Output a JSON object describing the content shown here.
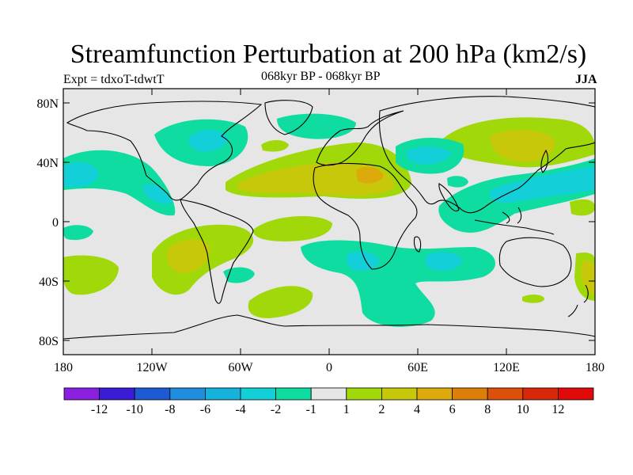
{
  "title": "Streamfunction Perturbation at 200 hPa (km2/s)",
  "subtitle_left": "Expt = tdxoT-tdwtT",
  "subtitle_center": "068kyr BP - 068kyr BP",
  "subtitle_right": "JJA",
  "lat_labels": [
    "80N",
    "40N",
    "0",
    "40S",
    "80S"
  ],
  "lon_labels": [
    "180",
    "120W",
    "60W",
    "0",
    "60E",
    "120E",
    "180"
  ],
  "colorbar": {
    "labels": [
      "-12",
      "-10",
      "-8",
      "-6",
      "-4",
      "-2",
      "-1",
      "1",
      "2",
      "4",
      "6",
      "8",
      "10",
      "12"
    ],
    "colors": [
      "#8a1fe0",
      "#3a1cd6",
      "#1e5ad2",
      "#1f8ede",
      "#15b2dc",
      "#12cfd8",
      "#0fdca0",
      "#e6e6e6",
      "#a0d80a",
      "#c8c80a",
      "#dcaa0a",
      "#dc7e0a",
      "#dc500a",
      "#d8280a",
      "#e00a0a"
    ]
  },
  "colors": {
    "land_outline": "#000000",
    "no_data_fill": "#e6e6e6"
  }
}
